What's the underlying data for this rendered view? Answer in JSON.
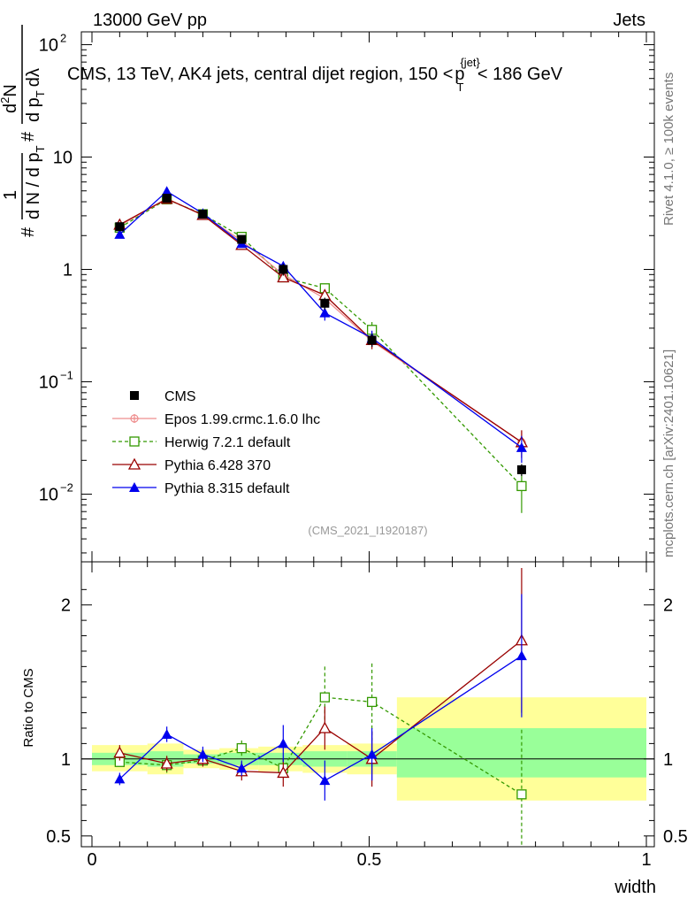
{
  "header": {
    "left": "13000 GeV pp",
    "right": "Jets"
  },
  "side_labels": {
    "rivet": "Rivet 4.1.0, ≥ 100k events",
    "mcplots": "mcplots.cern.ch [arXiv:2401.10621]"
  },
  "colors": {
    "cms": "#000000",
    "epos": "#ee8d8d",
    "herwig": "#339900",
    "pythia6": "#990000",
    "pythia8": "#0000ee",
    "band_yellow": "#ffff99",
    "band_green": "#99ff99"
  },
  "chart_data": [
    {
      "type": "line",
      "panel": "main",
      "title": "CMS, 13 TeV, AK4 jets, central dijet region, 150 < p_T^{jet} < 186 GeV",
      "title_parts": {
        "prefix": "CMS, 13 TeV, AK4 jets, central dijet region, 150 <",
        "p": "p",
        "sup": "{jet}",
        "sub": "T",
        "suffix": "< 186 GeV"
      },
      "ylabel_parts": {
        "hash1": "#",
        "hash2": "#",
        "one": "1",
        "dN": "d N / d p",
        "T1": "T",
        "d2N": "d",
        "two": "2",
        "N": "N",
        "dp": "d p",
        "T2": "T",
        "dl": "dλ"
      },
      "xlabel": "width",
      "y_scale": "log",
      "ylim": [
        0.0025,
        130
      ],
      "xlim": [
        -0.02,
        1.02
      ],
      "y_ticks": [
        {
          "value": 0.01,
          "base": "10",
          "exp": "−2"
        },
        {
          "value": 0.1,
          "base": "10",
          "exp": "−1"
        },
        {
          "value": 1,
          "base": "1",
          "exp": ""
        },
        {
          "value": 10,
          "base": "10",
          "exp": ""
        },
        {
          "value": 100,
          "base": "10",
          "exp": "2"
        }
      ],
      "x": [
        0.05,
        0.135,
        0.2,
        0.27,
        0.345,
        0.42,
        0.505,
        0.775
      ],
      "series": [
        {
          "name": "CMS",
          "marker": "square-filled",
          "values": [
            2.4,
            4.3,
            3.1,
            1.85,
            1.0,
            0.5,
            0.235,
            0.0165
          ],
          "err": [
            0.15,
            0.2,
            0.15,
            0.1,
            0.12,
            0.06,
            0.03,
            0.002
          ]
        },
        {
          "name": "Epos 1.99.crmc.1.6.0 lhc",
          "marker": "cross-open",
          "style": "solid",
          "values": [
            2.45,
            4.25,
            3.05,
            1.8,
            0.9,
            0.55,
            0.23,
            0.029
          ],
          "err": [
            0.1,
            0.15,
            0.1,
            0.08,
            0.06,
            0.06,
            0.03,
            0.008
          ]
        },
        {
          "name": "Herwig 7.2.1 default",
          "marker": "square-open",
          "style": "dashed",
          "values": [
            2.35,
            4.2,
            3.1,
            1.95,
            0.85,
            0.68,
            0.29,
            0.0118
          ],
          "err": [
            0.1,
            0.15,
            0.1,
            0.1,
            0.08,
            0.06,
            0.05,
            0.005
          ]
        },
        {
          "name": "Pythia 6.428 370",
          "marker": "triangle-open",
          "style": "solid",
          "values": [
            2.5,
            4.25,
            3.05,
            1.65,
            0.85,
            0.59,
            0.235,
            0.029
          ],
          "err": [
            0.12,
            0.15,
            0.1,
            0.1,
            0.08,
            0.07,
            0.04,
            0.008
          ]
        },
        {
          "name": "Pythia 8.315 default",
          "marker": "triangle-filled",
          "style": "solid",
          "values": [
            2.05,
            4.95,
            3.15,
            1.7,
            1.07,
            0.41,
            0.245,
            0.026
          ],
          "err": [
            0.1,
            0.15,
            0.1,
            0.08,
            0.08,
            0.06,
            0.04,
            0.007
          ]
        }
      ],
      "legend": [
        {
          "label": "CMS"
        },
        {
          "label": "Epos 1.99.crmc.1.6.0 lhc"
        },
        {
          "label": "Herwig 7.2.1 default"
        },
        {
          "label": "Pythia 6.428 370"
        },
        {
          "label": "Pythia 8.315 default"
        }
      ],
      "legend_position": "lower-left",
      "annotation": "(CMS_2021_I1920187)"
    },
    {
      "type": "line",
      "panel": "ratio",
      "ylabel": "Ratio to CMS",
      "xlabel": "width",
      "ylim": [
        0.43,
        2.28
      ],
      "y_ticks": [
        {
          "value": 0.5,
          "label": "0.5"
        },
        {
          "value": 1,
          "label": "1"
        },
        {
          "value": 2,
          "label": "2"
        }
      ],
      "x_ticks": [
        {
          "value": 0,
          "label": "0"
        },
        {
          "value": 0.5,
          "label": "0.5"
        },
        {
          "value": 1,
          "label": "1"
        }
      ],
      "bins": [
        {
          "lo": 0.0,
          "hi": 0.1,
          "yellow": [
            0.92,
            1.09
          ],
          "green": [
            0.96,
            1.04
          ]
        },
        {
          "lo": 0.1,
          "hi": 0.165,
          "yellow": [
            0.9,
            1.1
          ],
          "green": [
            0.95,
            1.05
          ]
        },
        {
          "lo": 0.165,
          "hi": 0.23,
          "yellow": [
            0.94,
            1.06
          ],
          "green": [
            0.97,
            1.03
          ]
        },
        {
          "lo": 0.23,
          "hi": 0.3,
          "yellow": [
            0.93,
            1.07
          ],
          "green": [
            0.96,
            1.04
          ]
        },
        {
          "lo": 0.3,
          "hi": 0.38,
          "yellow": [
            0.92,
            1.08
          ],
          "green": [
            0.96,
            1.04
          ]
        },
        {
          "lo": 0.38,
          "hi": 0.46,
          "yellow": [
            0.91,
            1.09
          ],
          "green": [
            0.95,
            1.05
          ]
        },
        {
          "lo": 0.46,
          "hi": 0.55,
          "yellow": [
            0.9,
            1.1
          ],
          "green": [
            0.95,
            1.05
          ]
        },
        {
          "lo": 0.55,
          "hi": 1.0,
          "yellow": [
            0.73,
            1.4
          ],
          "green": [
            0.88,
            1.2
          ]
        }
      ],
      "x": [
        0.05,
        0.135,
        0.2,
        0.27,
        0.345,
        0.42,
        0.505,
        0.775
      ],
      "series": [
        {
          "name": "Herwig 7.2.1 default",
          "marker": "square-open",
          "style": "dashed",
          "values": [
            0.98,
            0.96,
            0.99,
            1.07,
            0.94,
            1.4,
            1.37,
            0.77
          ],
          "err": [
            0.04,
            0.05,
            0.04,
            0.05,
            0.06,
            0.2,
            0.25,
            0.42
          ]
        },
        {
          "name": "Pythia 6.428 370",
          "marker": "triangle-open",
          "style": "solid",
          "values": [
            1.04,
            0.97,
            1.0,
            0.92,
            0.91,
            1.2,
            1.0,
            1.77
          ],
          "err": [
            0.05,
            0.05,
            0.05,
            0.06,
            0.09,
            0.14,
            0.18,
            0.47
          ]
        },
        {
          "name": "Pythia 8.315 default",
          "marker": "triangle-filled",
          "style": "solid",
          "values": [
            0.87,
            1.16,
            1.03,
            0.94,
            1.1,
            0.86,
            1.03,
            1.67
          ],
          "err": [
            0.04,
            0.05,
            0.05,
            0.05,
            0.12,
            0.13,
            0.17,
            0.4
          ]
        }
      ]
    }
  ]
}
